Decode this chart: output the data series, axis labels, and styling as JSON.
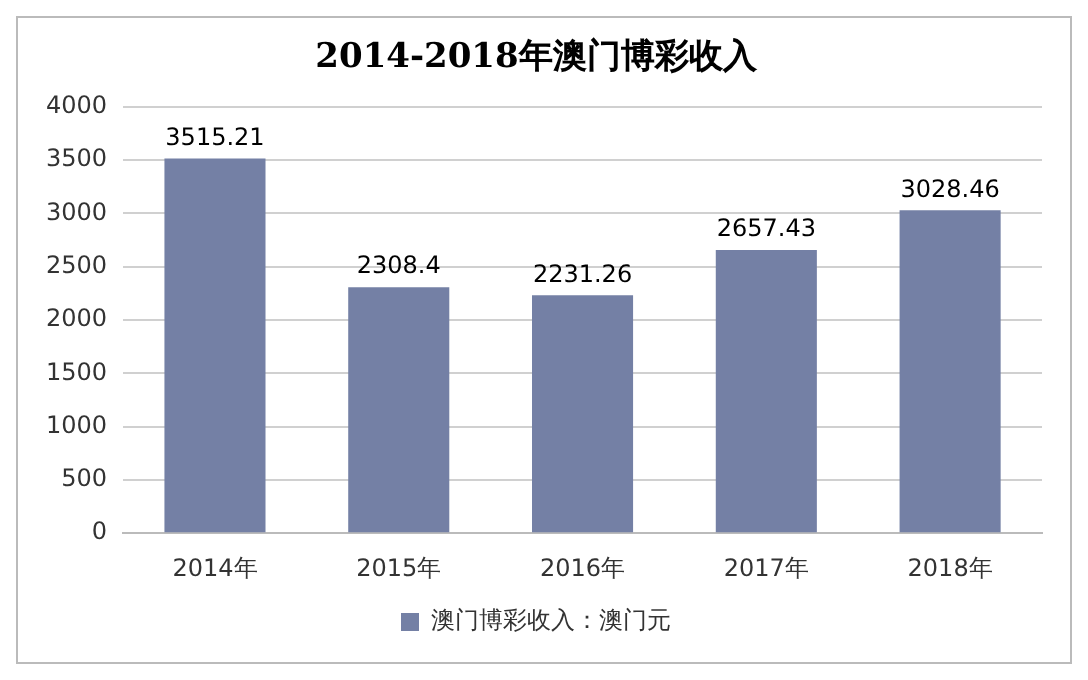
{
  "chart_data": {
    "type": "bar",
    "title": "2014-2018年澳门博彩收入",
    "categories": [
      "2014年",
      "2015年",
      "2016年",
      "2017年",
      "2018年"
    ],
    "series": [
      {
        "name": "澳门博彩收入：澳门元",
        "color": "#7480a5",
        "values": [
          3515.21,
          2308.4,
          2231.26,
          2657.43,
          3028.46
        ]
      }
    ],
    "ylim": [
      0,
      4000
    ],
    "yticks": [
      0,
      500,
      1000,
      1500,
      2000,
      2500,
      3000,
      3500,
      4000
    ],
    "grid": "y",
    "legend": "bottom",
    "data_labels": true
  }
}
